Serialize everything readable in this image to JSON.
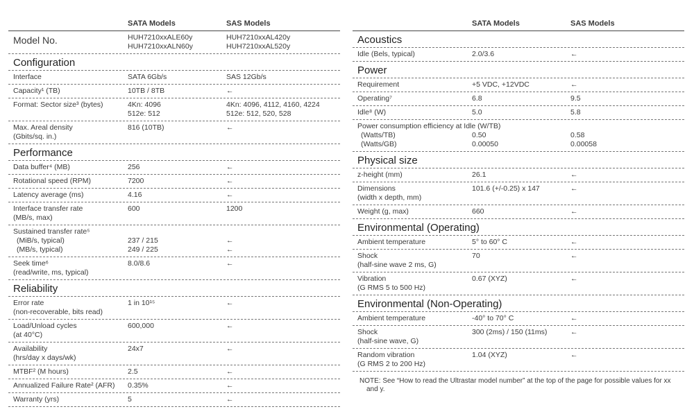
{
  "left": {
    "headers": [
      "SATA Models",
      "SAS Models"
    ],
    "model_row": {
      "label": [
        "Model No."
      ],
      "sata": [
        "HUH7210xxALE60y",
        "HUH7210xxALN60y"
      ],
      "sas": [
        "HUH7210xxAL420y",
        "HUH7210xxAL520y"
      ]
    },
    "sections": [
      {
        "title": "Configuration",
        "rows": [
          {
            "label": [
              "Interface"
            ],
            "sata": [
              "SATA 6Gb/s"
            ],
            "sas": [
              "SAS 12Gb/s"
            ]
          },
          {
            "label": [
              "Capacity¹ (TB)"
            ],
            "sata": [
              "10TB / 8TB"
            ],
            "sas": [
              "←"
            ]
          },
          {
            "label": [
              "Format: Sector size³ (bytes)"
            ],
            "sata": [
              "4Kn: 4096",
              "512e: 512"
            ],
            "sas": [
              "4Kn: 4096, 4112, 4160, 4224",
              "512e: 512, 520, 528"
            ]
          },
          {
            "label": [
              "Max. Areal density",
              "(Gbits/sq. in.)"
            ],
            "sata": [
              "816 (10TB)"
            ],
            "sas": [
              "←"
            ]
          }
        ]
      },
      {
        "title": "Performance",
        "rows": [
          {
            "label": [
              "Data buffer⁴ (MB)"
            ],
            "sata": [
              "256"
            ],
            "sas": [
              "←"
            ]
          },
          {
            "label": [
              "Rotational speed (RPM)"
            ],
            "sata": [
              "7200"
            ],
            "sas": [
              "←"
            ]
          },
          {
            "label": [
              "Latency average (ms)"
            ],
            "sata": [
              "4.16"
            ],
            "sas": [
              "←"
            ]
          },
          {
            "label": [
              "Interface transfer rate",
              "(MB/s, max)"
            ],
            "sata": [
              "600"
            ],
            "sas": [
              "1200"
            ]
          },
          {
            "label": [
              "Sustained transfer rate⁵"
            ],
            "sub": [
              {
                "label": "(MiB/s, typical)",
                "sata": "237 / 215",
                "sas": "←"
              },
              {
                "label": "(MB/s, typical)",
                "sata": "249 / 225",
                "sas": "←"
              }
            ]
          },
          {
            "label": [
              "Seek time⁶",
              "(read/write, ms, typical)"
            ],
            "sata": [
              "8.0/8.6"
            ],
            "sas": [
              "←"
            ]
          }
        ]
      },
      {
        "title": "Reliability",
        "rows": [
          {
            "label": [
              "Error rate",
              "(non-recoverable, bits read)"
            ],
            "sata": [
              "1 in 10¹⁵"
            ],
            "sas": [
              "←"
            ]
          },
          {
            "label": [
              "Load/Unload cycles",
              "(at 40°C)"
            ],
            "sata": [
              "600,000"
            ],
            "sas": [
              "←"
            ]
          },
          {
            "label": [
              "Availability",
              "(hrs/day x days/wk)"
            ],
            "sata": [
              "24x7"
            ],
            "sas": [
              "←"
            ]
          },
          {
            "label": [
              "MTBF² (M hours)"
            ],
            "sata": [
              "2.5"
            ],
            "sas": [
              "←"
            ]
          },
          {
            "label": [
              "Annualized Failure Rate² (AFR)"
            ],
            "sata": [
              "0.35%"
            ],
            "sas": [
              "←"
            ]
          },
          {
            "label": [
              "Warranty (yrs)"
            ],
            "sata": [
              "5"
            ],
            "sas": [
              "←"
            ]
          }
        ]
      }
    ]
  },
  "right": {
    "headers": [
      "SATA Models",
      "SAS Models"
    ],
    "sections": [
      {
        "title": "Acoustics",
        "rows": [
          {
            "label": [
              "Idle (Bels, typical)"
            ],
            "sata": [
              "2.0/3.6"
            ],
            "sas": [
              "←"
            ]
          }
        ]
      },
      {
        "title": "Power",
        "rows": [
          {
            "label": [
              "Requirement"
            ],
            "sata": [
              "+5 VDC, +12VDC"
            ],
            "sas": [
              "←"
            ]
          },
          {
            "label": [
              "Operating⁷"
            ],
            "sata": [
              "6.8"
            ],
            "sas": [
              "9.5"
            ]
          },
          {
            "label": [
              "Idle⁸ (W)"
            ],
            "sata": [
              "5.0"
            ],
            "sas": [
              "5.8"
            ]
          },
          {
            "label": [
              "Power consumption efficiency at Idle (W/TB)"
            ],
            "sub": [
              {
                "label": "(Watts/TB)",
                "sata": "0.50",
                "sas": "0.58"
              },
              {
                "label": "(Watts/GB)",
                "sata": "0.00050",
                "sas": "0.00058"
              }
            ]
          }
        ]
      },
      {
        "title": "Physical size",
        "rows": [
          {
            "label": [
              "z-height (mm)"
            ],
            "sata": [
              "26.1"
            ],
            "sas": [
              "←"
            ]
          },
          {
            "label": [
              "Dimensions",
              "(width x depth, mm)"
            ],
            "sata": [
              "101.6 (+/-0.25) x 147"
            ],
            "sas": [
              "←"
            ]
          },
          {
            "label": [
              "Weight (g, max)"
            ],
            "sata": [
              "660"
            ],
            "sas": [
              "←"
            ]
          }
        ]
      },
      {
        "title": "Environmental (Operating)",
        "rows": [
          {
            "label": [
              "Ambient temperature"
            ],
            "sata": [
              "5° to 60° C"
            ],
            "sas": [
              "←"
            ]
          },
          {
            "label": [
              "Shock",
              "(half-sine wave 2 ms, G)"
            ],
            "sata": [
              "70"
            ],
            "sas": [
              "←"
            ]
          },
          {
            "label": [
              "Vibration",
              "(G RMS 5 to 500 Hz)"
            ],
            "sata": [
              "0.67 (XYZ)"
            ],
            "sas": [
              "←"
            ]
          }
        ]
      },
      {
        "title": "Environmental (Non-Operating)",
        "rows": [
          {
            "label": [
              "Ambient temperature"
            ],
            "sata": [
              "-40° to 70° C"
            ],
            "sas": [
              "←"
            ]
          },
          {
            "label": [
              "Shock",
              "(half-sine wave, G)"
            ],
            "sata": [
              "300 (2ms) / 150 (11ms)"
            ],
            "sas": [
              "←"
            ]
          },
          {
            "label": [
              "Random vibration",
              "(G RMS 2 to 200 Hz)"
            ],
            "sata": [
              "1.04 (XYZ)"
            ],
            "sas": [
              "←"
            ]
          }
        ]
      }
    ],
    "note": "NOTE: See “How to read the Ultrastar model number” at the top of the page for possible values for xx and y."
  }
}
